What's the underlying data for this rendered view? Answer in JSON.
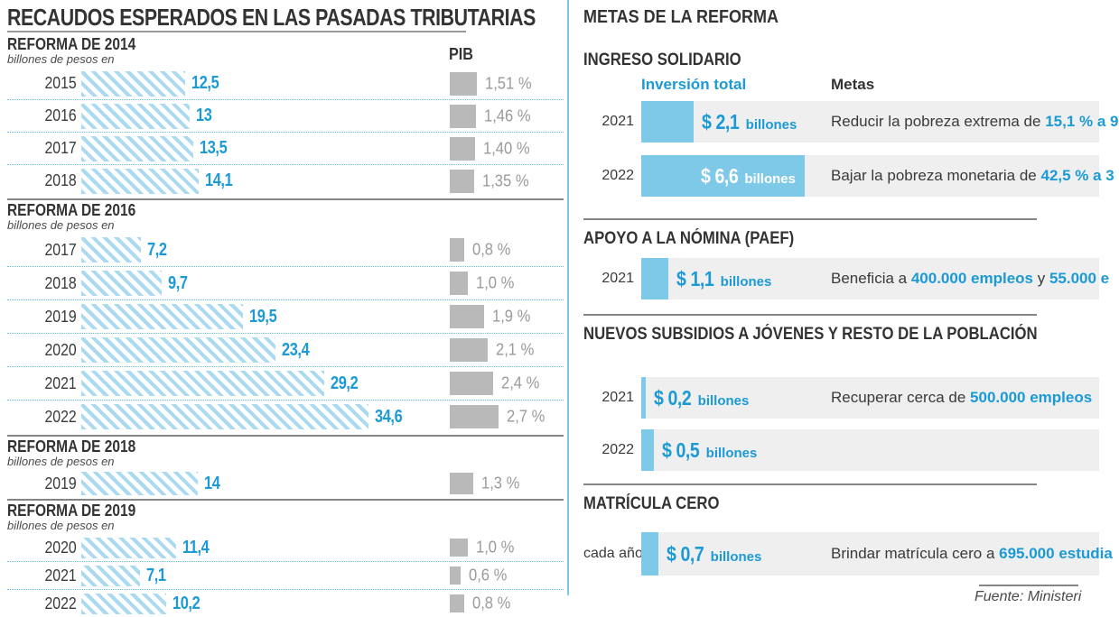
{
  "colors": {
    "accent_blue": "#1b9ad6",
    "bar_blue": "#7ec9e8",
    "hatch_blue": "#aadaef",
    "dotted_blue": "#5fc2e7",
    "pib_gray": "#b9b9b9",
    "text_gray": "#9a9a9a",
    "stripe_gray": "#efefef",
    "line_gray": "#858585",
    "text_dark": "#383838"
  },
  "left": {
    "pib_header": "PIB",
    "unit_note": "billones de pesos en"
  },
  "chart_data": [
    {
      "type": "bar",
      "title": "RECAUDOS ESPERADOS EN LAS PASADAS TRIBUTARIAS",
      "ylabel": "billones de pesos",
      "secondary_metric": "PIB %",
      "legend_position": "none",
      "groups": [
        {
          "reform": "REFORMA DE 2014",
          "rows": [
            {
              "year": "2015",
              "value": 12.5,
              "value_label": "12,5",
              "pib": 1.51,
              "pib_label": "1,51 %"
            },
            {
              "year": "2016",
              "value": 13,
              "value_label": "13",
              "pib": 1.46,
              "pib_label": "1,46 %"
            },
            {
              "year": "2017",
              "value": 13.5,
              "value_label": "13,5",
              "pib": 1.4,
              "pib_label": "1,40 %"
            },
            {
              "year": "2018",
              "value": 14.1,
              "value_label": "14,1",
              "pib": 1.35,
              "pib_label": "1,35 %"
            }
          ]
        },
        {
          "reform": "REFORMA DE 2016",
          "rows": [
            {
              "year": "2017",
              "value": 7.2,
              "value_label": "7,2",
              "pib": 0.8,
              "pib_label": "0,8 %"
            },
            {
              "year": "2018",
              "value": 9.7,
              "value_label": "9,7",
              "pib": 1.0,
              "pib_label": "1,0 %"
            },
            {
              "year": "2019",
              "value": 19.5,
              "value_label": "19,5",
              "pib": 1.9,
              "pib_label": "1,9 %"
            },
            {
              "year": "2020",
              "value": 23.4,
              "value_label": "23,4",
              "pib": 2.1,
              "pib_label": "2,1 %"
            },
            {
              "year": "2021",
              "value": 29.2,
              "value_label": "29,2",
              "pib": 2.4,
              "pib_label": "2,4 %"
            },
            {
              "year": "2022",
              "value": 34.6,
              "value_label": "34,6",
              "pib": 2.7,
              "pib_label": "2,7 %"
            }
          ]
        },
        {
          "reform": "REFORMA DE 2018",
          "rows": [
            {
              "year": "2019",
              "value": 14,
              "value_label": "14",
              "pib": 1.3,
              "pib_label": "1,3 %"
            }
          ]
        },
        {
          "reform": "REFORMA DE 2019",
          "rows": [
            {
              "year": "2020",
              "value": 11.4,
              "value_label": "11,4",
              "pib": 1.0,
              "pib_label": "1,0 %"
            },
            {
              "year": "2021",
              "value": 7.1,
              "value_label": "7,1",
              "pib": 0.6,
              "pib_label": "0,6 %"
            },
            {
              "year": "2022",
              "value": 10.2,
              "value_label": "10,2",
              "pib": 0.8,
              "pib_label": "0,8 %"
            }
          ]
        }
      ]
    },
    {
      "type": "bar",
      "title": "METAS DE LA REFORMA",
      "unit": "billones de pesos",
      "source": "Fuente: Ministeri",
      "sections": [
        {
          "title": "INGRESO SOLIDARIO",
          "col1": "Inversión total",
          "col2": "Metas",
          "rows": [
            {
              "label": "2021",
              "value": 2.1,
              "value_label": "$ 2,1",
              "unit_label": "billones",
              "value_inside": false,
              "meta": [
                {
                  "text": "Reducir la pobreza extrema de ",
                  "highlight": false
                },
                {
                  "text": "15,1 % a 9",
                  "highlight": true
                }
              ]
            },
            {
              "label": "2022",
              "value": 6.6,
              "value_label": "$ 6,6",
              "unit_label": "billones",
              "value_inside": true,
              "meta": [
                {
                  "text": "Bajar la pobreza monetaria de ",
                  "highlight": false
                },
                {
                  "text": "42,5 % a 3",
                  "highlight": true
                }
              ]
            }
          ]
        },
        {
          "title": "APOYO A LA NÓMINA (PAEF)",
          "rows": [
            {
              "label": "2021",
              "value": 1.1,
              "value_label": "$ 1,1",
              "unit_label": "billones",
              "value_inside": false,
              "meta": [
                {
                  "text": "Beneficia a ",
                  "highlight": false
                },
                {
                  "text": "400.000 empleos",
                  "highlight": true
                },
                {
                  "text": " y ",
                  "highlight": false
                },
                {
                  "text": "55.000 e",
                  "highlight": true
                }
              ]
            }
          ]
        },
        {
          "title": "NUEVOS SUBSIDIOS A JÓVENES Y RESTO DE LA POBLACIÓN",
          "rows": [
            {
              "label": "2021",
              "value": 0.2,
              "value_label": "$ 0,2",
              "unit_label": "billones",
              "value_inside": false,
              "meta": [
                {
                  "text": "Recuperar cerca de ",
                  "highlight": false
                },
                {
                  "text": "500.000 empleos",
                  "highlight": true
                }
              ]
            },
            {
              "label": "2022",
              "value": 0.5,
              "value_label": "$ 0,5",
              "unit_label": "billones",
              "value_inside": false,
              "meta": []
            }
          ]
        },
        {
          "title": "MATRÍCULA CERO",
          "rows": [
            {
              "label": "cada año",
              "value": 0.7,
              "value_label": "$ 0,7",
              "unit_label": "billones",
              "value_inside": false,
              "meta": [
                {
                  "text": "Brindar matrícula cero a ",
                  "highlight": false
                },
                {
                  "text": "695.000 estudia",
                  "highlight": true
                }
              ]
            }
          ]
        }
      ]
    }
  ]
}
